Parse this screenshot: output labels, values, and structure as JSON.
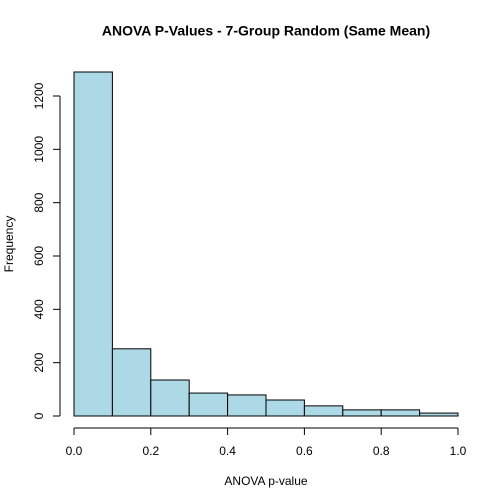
{
  "chart_data": {
    "type": "histogram",
    "title": "ANOVA P-Values - 7-Group Random (Same Mean)",
    "x_label": "ANOVA p-value",
    "y_label": "Frequency",
    "bins": [
      0,
      0.1,
      0.2,
      0.3,
      0.4,
      0.5,
      0.6,
      0.7,
      0.8,
      0.9,
      1
    ],
    "values": [
      1290,
      252,
      135,
      86,
      79,
      60,
      38,
      23,
      23,
      11
    ],
    "color": "lightblue",
    "edgecolor": "#000000",
    "xlim": [
      0,
      1
    ],
    "ylim": [
      0,
      1290
    ],
    "xticks": [
      {
        "value": 0,
        "label": "0.0"
      },
      0.2,
      0.4,
      0.6,
      0.8,
      {
        "value": 1,
        "label": "1.0"
      }
    ],
    "yticks": [
      0,
      200,
      400,
      600,
      800,
      1000,
      1200
    ]
  }
}
